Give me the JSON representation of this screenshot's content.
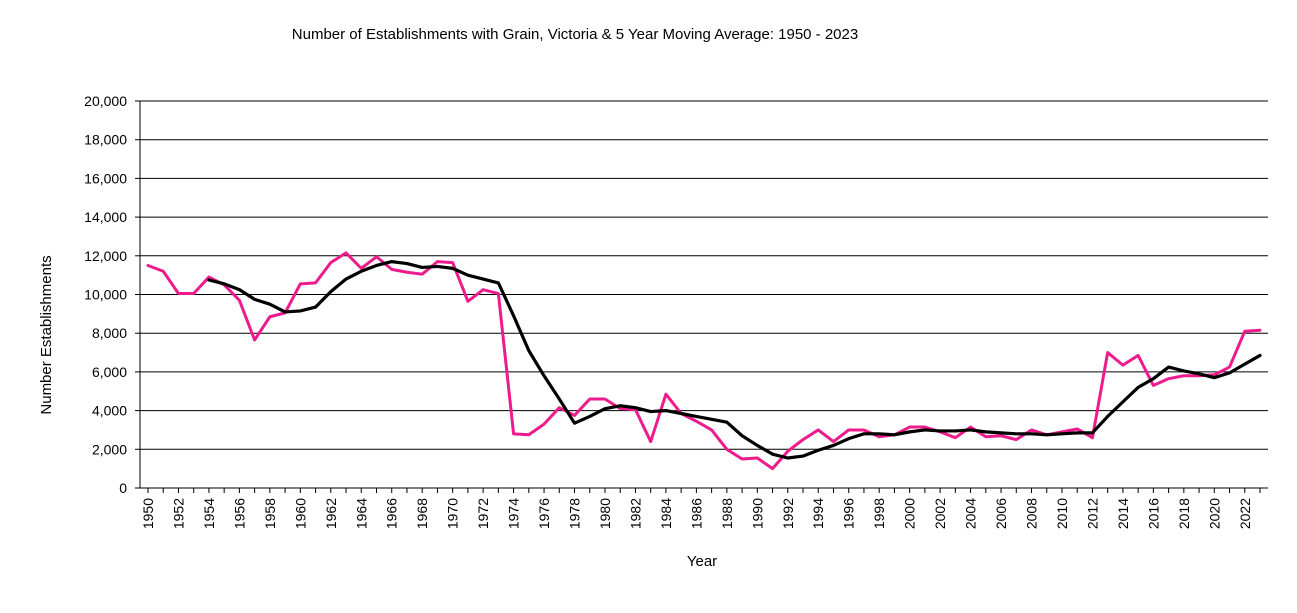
{
  "chart_data": {
    "type": "line",
    "title": "Number of Establishments with Grain, Victoria & 5 Year Moving Average: 1950 - 2023",
    "xlabel": "Year",
    "ylabel": "Number Establishments",
    "ylim": [
      0,
      20000
    ],
    "yticks": [
      "0",
      "2,000",
      "4,000",
      "6,000",
      "8,000",
      "10,000",
      "12,000",
      "14,000",
      "16,000",
      "18,000",
      "20,000"
    ],
    "ytick_values": [
      0,
      2000,
      4000,
      6000,
      8000,
      10000,
      12000,
      14000,
      16000,
      18000,
      20000
    ],
    "xticks": [
      "1950",
      "1952",
      "1954",
      "1956",
      "1958",
      "1960",
      "1962",
      "1964",
      "1966",
      "1968",
      "1970",
      "1972",
      "1974",
      "1976",
      "1978",
      "1980",
      "1982",
      "1984",
      "1986",
      "1988",
      "1990",
      "1992",
      "1994",
      "1996",
      "1998",
      "2000",
      "2002",
      "2004",
      "2006",
      "2008",
      "2010",
      "2012",
      "2014",
      "2016",
      "2018",
      "2020",
      "2022"
    ],
    "grid": "horizontal",
    "legend": "none",
    "x": [
      1950,
      1951,
      1952,
      1953,
      1954,
      1955,
      1956,
      1957,
      1958,
      1959,
      1960,
      1961,
      1962,
      1963,
      1964,
      1965,
      1966,
      1967,
      1968,
      1969,
      1970,
      1971,
      1972,
      1973,
      1974,
      1975,
      1976,
      1977,
      1978,
      1979,
      1980,
      1981,
      1982,
      1983,
      1984,
      1985,
      1986,
      1987,
      1988,
      1989,
      1990,
      1991,
      1992,
      1993,
      1994,
      1995,
      1996,
      1997,
      1998,
      1999,
      2000,
      2001,
      2002,
      2003,
      2004,
      2005,
      2006,
      2007,
      2008,
      2009,
      2010,
      2011,
      2012,
      2013,
      2014,
      2015,
      2016,
      2017,
      2018,
      2019,
      2020,
      2021,
      2022,
      2023
    ],
    "series": [
      {
        "name": "Number of Establishments",
        "color": "#ee1b8c",
        "values": [
          11500,
          11200,
          10050,
          10050,
          10900,
          10500,
          9700,
          7650,
          8850,
          9050,
          10550,
          10600,
          11650,
          12150,
          11350,
          11950,
          11300,
          11150,
          11050,
          11700,
          11650,
          9650,
          10250,
          10050,
          2800,
          2750,
          3300,
          4150,
          3750,
          4600,
          4600,
          4100,
          4050,
          2400,
          4850,
          3850,
          3450,
          3000,
          2000,
          1500,
          1550,
          1000,
          1900,
          2500,
          3000,
          2400,
          3000,
          3000,
          2650,
          2750,
          3150,
          3150,
          2900,
          2600,
          3150,
          2650,
          2700,
          2500,
          3000,
          2750,
          2900,
          3050,
          2600,
          7000,
          6350,
          6850,
          5300,
          5650,
          5800,
          5800,
          5850,
          6250,
          8100,
          8150
        ]
      },
      {
        "name": "5 Year Moving Average",
        "color": "#000000",
        "values": [
          null,
          null,
          null,
          null,
          10750,
          10550,
          10250,
          9750,
          9500,
          9100,
          9150,
          9350,
          10150,
          10800,
          11200,
          11500,
          11700,
          11600,
          11400,
          11450,
          11350,
          11000,
          10800,
          10600,
          8900,
          7100,
          5800,
          4600,
          3350,
          3700,
          4100,
          4250,
          4150,
          3950,
          4000,
          3850,
          3700,
          3550,
          3400,
          2700,
          2200,
          1750,
          1550,
          1650,
          1950,
          2200,
          2550,
          2800,
          2800,
          2750,
          2900,
          3000,
          2950,
          2950,
          3000,
          2900,
          2850,
          2800,
          2800,
          2750,
          2800,
          2850,
          2850,
          3700,
          4450,
          5200,
          5650,
          6250,
          6050,
          5900,
          5700,
          5950,
          6400,
          6850
        ]
      }
    ]
  }
}
